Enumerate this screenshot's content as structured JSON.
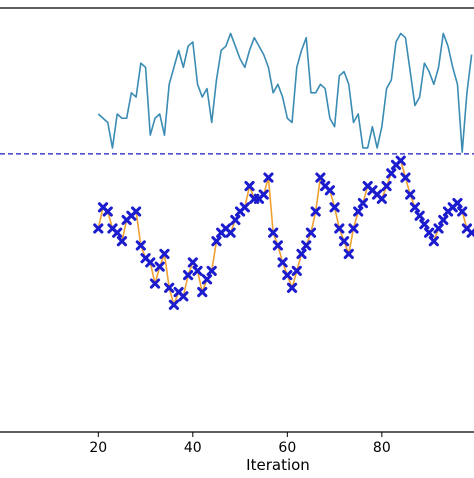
{
  "chart_data": {
    "type": "line",
    "xlabel": "Iteration",
    "ylabel": "",
    "title": "",
    "xlim": [
      -0.8,
      99.5
    ],
    "ylim": [
      0,
      100
    ],
    "x_ticks": [
      20,
      40,
      60,
      80
    ],
    "x_tick_labels": [
      "20",
      "40",
      "60",
      "80"
    ],
    "grid": false,
    "legend": "none",
    "reference_line": {
      "y": 65.6,
      "color": "#1f1fbf",
      "style": "dashed"
    },
    "series": [
      {
        "color": "#3a8cb4",
        "values": [
          [
            20,
            75
          ],
          [
            21,
            74
          ],
          [
            22,
            73
          ],
          [
            23,
            67
          ],
          [
            24,
            75
          ],
          [
            25,
            74
          ],
          [
            26,
            74
          ],
          [
            27,
            80
          ],
          [
            28,
            79
          ],
          [
            29,
            87
          ],
          [
            30,
            86
          ],
          [
            31,
            70
          ],
          [
            32,
            74
          ],
          [
            33,
            75
          ],
          [
            34,
            70
          ],
          [
            35,
            82
          ],
          [
            36,
            86
          ],
          [
            37,
            90
          ],
          [
            38,
            86
          ],
          [
            39,
            91
          ],
          [
            40,
            92
          ],
          [
            41,
            82
          ],
          [
            42,
            79
          ],
          [
            43,
            81
          ],
          [
            44,
            73
          ],
          [
            45,
            83
          ],
          [
            46,
            90
          ],
          [
            47,
            91
          ],
          [
            48,
            94
          ],
          [
            49,
            91
          ],
          [
            50,
            88
          ],
          [
            51,
            86
          ],
          [
            52,
            90
          ],
          [
            53,
            93
          ],
          [
            54,
            91
          ],
          [
            55,
            89
          ],
          [
            56,
            86
          ],
          [
            57,
            80
          ],
          [
            58,
            82
          ],
          [
            59,
            79
          ],
          [
            60,
            74
          ],
          [
            61,
            73
          ],
          [
            62,
            86
          ],
          [
            63,
            90
          ],
          [
            64,
            93
          ],
          [
            65,
            80
          ],
          [
            66,
            80
          ],
          [
            67,
            82
          ],
          [
            68,
            81
          ],
          [
            69,
            74
          ],
          [
            70,
            72
          ],
          [
            71,
            84
          ],
          [
            72,
            85
          ],
          [
            73,
            82
          ],
          [
            74,
            73
          ],
          [
            75,
            75
          ],
          [
            76,
            67
          ],
          [
            77,
            67
          ],
          [
            78,
            72
          ],
          [
            79,
            67
          ],
          [
            80,
            72
          ],
          [
            81,
            81
          ],
          [
            82,
            83
          ],
          [
            83,
            92
          ],
          [
            84,
            94
          ],
          [
            85,
            93
          ],
          [
            86,
            85
          ],
          [
            87,
            77
          ],
          [
            88,
            79
          ],
          [
            89,
            87
          ],
          [
            90,
            85
          ],
          [
            91,
            82
          ],
          [
            92,
            86
          ],
          [
            93,
            94
          ],
          [
            94,
            91
          ],
          [
            95,
            86
          ],
          [
            96,
            82
          ],
          [
            97,
            66
          ],
          [
            98,
            80
          ],
          [
            99,
            89
          ]
        ]
      },
      {
        "color": "#f0a030",
        "marker": "x",
        "marker_color": "#1c1ccf",
        "values": [
          [
            20,
            48
          ],
          [
            21,
            53
          ],
          [
            22,
            52
          ],
          [
            23,
            48
          ],
          [
            24,
            47
          ],
          [
            25,
            45
          ],
          [
            26,
            50
          ],
          [
            27,
            51
          ],
          [
            28,
            52
          ],
          [
            29,
            44
          ],
          [
            30,
            41
          ],
          [
            31,
            40
          ],
          [
            32,
            35
          ],
          [
            33,
            39
          ],
          [
            34,
            42
          ],
          [
            35,
            34
          ],
          [
            36,
            30
          ],
          [
            37,
            33
          ],
          [
            38,
            32
          ],
          [
            39,
            37
          ],
          [
            40,
            40
          ],
          [
            41,
            38
          ],
          [
            42,
            33
          ],
          [
            43,
            36
          ],
          [
            44,
            38
          ],
          [
            45,
            45
          ],
          [
            46,
            47
          ],
          [
            47,
            48
          ],
          [
            48,
            47
          ],
          [
            49,
            50
          ],
          [
            50,
            52
          ],
          [
            51,
            53
          ],
          [
            52,
            58
          ],
          [
            53,
            55
          ],
          [
            54,
            55
          ],
          [
            55,
            56
          ],
          [
            56,
            60
          ],
          [
            57,
            47
          ],
          [
            58,
            44
          ],
          [
            59,
            40
          ],
          [
            60,
            37
          ],
          [
            61,
            34
          ],
          [
            62,
            38
          ],
          [
            63,
            42
          ],
          [
            64,
            44
          ],
          [
            65,
            47
          ],
          [
            66,
            52
          ],
          [
            67,
            60
          ],
          [
            68,
            58
          ],
          [
            69,
            57
          ],
          [
            70,
            53
          ],
          [
            71,
            48
          ],
          [
            72,
            45
          ],
          [
            73,
            42
          ],
          [
            74,
            48
          ],
          [
            75,
            52
          ],
          [
            76,
            54
          ],
          [
            77,
            58
          ],
          [
            78,
            57
          ],
          [
            79,
            56
          ],
          [
            80,
            55
          ],
          [
            81,
            58
          ],
          [
            82,
            61
          ],
          [
            83,
            63
          ],
          [
            84,
            64
          ],
          [
            85,
            60
          ],
          [
            86,
            56
          ],
          [
            87,
            53
          ],
          [
            88,
            51
          ],
          [
            89,
            49
          ],
          [
            90,
            47
          ],
          [
            91,
            45
          ],
          [
            92,
            48
          ],
          [
            93,
            50
          ],
          [
            94,
            52
          ],
          [
            95,
            53
          ],
          [
            96,
            54
          ],
          [
            97,
            52
          ],
          [
            98,
            48
          ],
          [
            99,
            47
          ]
        ]
      }
    ]
  }
}
